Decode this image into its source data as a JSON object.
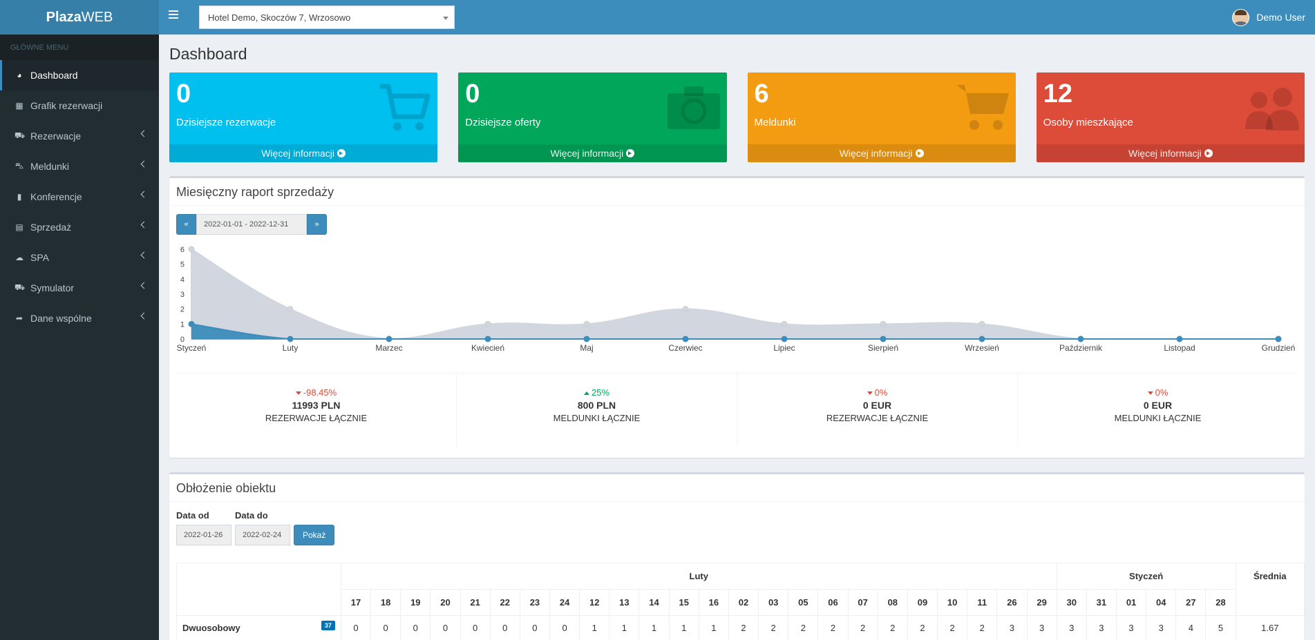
{
  "app": {
    "brand_bold": "Plaza",
    "brand_rest": "WEB"
  },
  "header": {
    "hotel": "Hotel Demo, Skoczów 7, Wrzosowo",
    "user_name": "Demo User"
  },
  "sidebar": {
    "header": "GŁÓWNE MENU",
    "items": [
      {
        "label": "Dashboard",
        "icon": "dashboard-icon",
        "glyph": "◕"
      },
      {
        "label": "Grafik rezerwacji",
        "icon": "calendar-icon",
        "glyph": "▦"
      },
      {
        "label": "Rezerwacje",
        "icon": "cart-icon",
        "glyph": "⛟"
      },
      {
        "label": "Meldunki",
        "icon": "shopping-cart-icon",
        "glyph": "⛍"
      },
      {
        "label": "Konferencje",
        "icon": "book-icon",
        "glyph": "▮"
      },
      {
        "label": "Sprzedaż",
        "icon": "file-icon",
        "glyph": "▤"
      },
      {
        "label": "SPA",
        "icon": "cloud-icon",
        "glyph": "☁"
      },
      {
        "label": "Symulator",
        "icon": "car-icon",
        "glyph": "⛟"
      },
      {
        "label": "Dane wspólne",
        "icon": "share-icon",
        "glyph": "➦"
      }
    ]
  },
  "main": {
    "title": "Dashboard",
    "more_info": "Więcej informacji",
    "boxes": [
      {
        "value": "0",
        "label": "Dzisiejsze rezerwacje",
        "color": "#00c0ef",
        "icon": "cart-icon"
      },
      {
        "value": "0",
        "label": "Dzisiejsze oferty",
        "color": "#00a65a",
        "icon": "camera-refresh-icon"
      },
      {
        "value": "6",
        "label": "Meldunki",
        "color": "#f39c12",
        "icon": "shopping-cart-icon"
      },
      {
        "value": "12",
        "label": "Osoby mieszkające",
        "color": "#dd4b39",
        "icon": "users-icon"
      }
    ],
    "sales": {
      "title": "Miesięczny raport sprzedaży",
      "date_range": "2022-01-01 - 2022-12-31",
      "stats": [
        {
          "pct": "-98.45%",
          "dir": "down",
          "amount": "11993 PLN",
          "caption": "REZERWACJE ŁĄCZNIE"
        },
        {
          "pct": "25%",
          "dir": "up",
          "amount": "800 PLN",
          "caption": "MELDUNKI ŁĄCZNIE"
        },
        {
          "pct": "0%",
          "dir": "down",
          "amount": "0 EUR",
          "caption": "REZERWACJE ŁĄCZNIE"
        },
        {
          "pct": "0%",
          "dir": "down",
          "amount": "0 EUR",
          "caption": "MELDUNKI ŁĄCZNIE"
        }
      ]
    },
    "occupancy": {
      "title": "Obłożenie obiektu",
      "from_label": "Data od",
      "to_label": "Data do",
      "from": "2022-01-26",
      "to": "2022-02-24",
      "show_button": "Pokaż",
      "months": [
        {
          "name": "Luty",
          "span": 24
        },
        {
          "name": "Styczeń",
          "span": 6
        }
      ],
      "avg_label": "Średnia",
      "days": [
        "17",
        "18",
        "19",
        "20",
        "21",
        "22",
        "23",
        "24",
        "12",
        "13",
        "14",
        "15",
        "16",
        "02",
        "03",
        "05",
        "06",
        "07",
        "08",
        "09",
        "10",
        "11",
        "26",
        "29",
        "30",
        "31",
        "01",
        "04",
        "27",
        "28"
      ],
      "rows": [
        {
          "name": "Dwuosobowy",
          "badge": "37",
          "values": [
            "0",
            "0",
            "0",
            "0",
            "0",
            "0",
            "0",
            "0",
            "1",
            "1",
            "1",
            "1",
            "1",
            "2",
            "2",
            "2",
            "2",
            "2",
            "2",
            "2",
            "2",
            "2",
            "3",
            "3",
            "3",
            "3",
            "3",
            "3",
            "4",
            "5"
          ],
          "avg": "1.67"
        }
      ]
    }
  },
  "chart_data": {
    "type": "area",
    "categories": [
      "Styczeń",
      "Luty",
      "Marzec",
      "Kwiecień",
      "Maj",
      "Czerwiec",
      "Lipiec",
      "Sierpień",
      "Wrzesień",
      "Październik",
      "Listopad",
      "Grudzień"
    ],
    "series": [
      {
        "values": [
          6,
          2,
          0,
          1,
          1,
          2,
          1,
          1,
          1,
          0,
          0,
          0
        ],
        "color": "#d2d6de"
      },
      {
        "values": [
          1,
          0,
          0,
          0,
          0,
          0,
          0,
          0,
          0,
          0,
          0,
          0
        ],
        "color": "#3c8dbc"
      }
    ],
    "ylim": [
      0,
      6
    ],
    "yticks": [
      "0",
      "1",
      "2",
      "3",
      "4",
      "5",
      "6"
    ],
    "grid": false
  }
}
